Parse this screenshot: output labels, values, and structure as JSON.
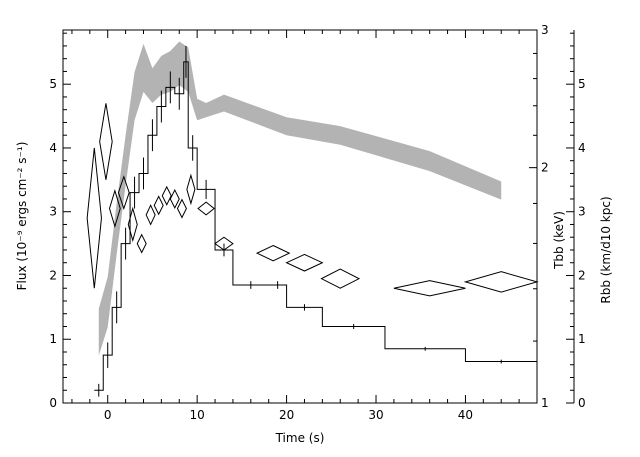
{
  "chart_data": {
    "type": "line",
    "x_axis": {
      "label": "Time (s)",
      "range": [
        -5,
        48
      ],
      "ticks": [
        0,
        10,
        20,
        30,
        40
      ],
      "tick_labels": [
        "0",
        "10",
        "20",
        "30",
        "40"
      ]
    },
    "y_axis_left": {
      "label": "Flux (10⁻⁹ ergs cm⁻² s⁻¹)",
      "range": [
        0,
        5.85
      ],
      "ticks": [
        0,
        1,
        2,
        3,
        4,
        5
      ],
      "tick_labels": [
        "0",
        "1",
        "2",
        "3",
        "4",
        "5"
      ]
    },
    "y_axis_right_temp": {
      "label": "Tbb (keV)",
      "scale": "log",
      "range": [
        1,
        3
      ],
      "ticks": [
        1,
        2,
        3
      ],
      "tick_labels": [
        "1",
        "2",
        "3"
      ]
    },
    "y_axis_right_radius": {
      "label": "Rbb (km/d10 kpc)",
      "range": [
        0,
        5.85
      ],
      "ticks": [
        0,
        1,
        2,
        3,
        4,
        5
      ],
      "tick_labels": [
        "0",
        "1",
        "2",
        "3",
        "4",
        "5"
      ]
    },
    "series": [
      {
        "kind": "step",
        "axis": "flux",
        "bins": [
          {
            "x0": -1.5,
            "x1": -0.5,
            "y": 0.2,
            "err": 0.1
          },
          {
            "x0": -0.5,
            "x1": 0.5,
            "y": 0.75,
            "err": 0.2
          },
          {
            "x0": 0.5,
            "x1": 1.5,
            "y": 1.5,
            "err": 0.25
          },
          {
            "x0": 1.5,
            "x1": 2.5,
            "y": 2.5,
            "err": 0.25
          },
          {
            "x0": 2.5,
            "x1": 3.5,
            "y": 3.3,
            "err": 0.25
          },
          {
            "x0": 3.5,
            "x1": 4.5,
            "y": 3.6,
            "err": 0.25
          },
          {
            "x0": 4.5,
            "x1": 5.5,
            "y": 4.2,
            "err": 0.25
          },
          {
            "x0": 5.5,
            "x1": 6.5,
            "y": 4.65,
            "err": 0.25
          },
          {
            "x0": 6.5,
            "x1": 7.5,
            "y": 4.95,
            "err": 0.25
          },
          {
            "x0": 7.5,
            "x1": 8.5,
            "y": 4.85,
            "err": 0.25
          },
          {
            "x0": 8.5,
            "x1": 9.0,
            "y": 5.35,
            "err": 0.25
          },
          {
            "x0": 9.0,
            "x1": 10.0,
            "y": 4.0,
            "err": 0.2
          },
          {
            "x0": 10.0,
            "x1": 12.0,
            "y": 3.35,
            "err": 0.15
          },
          {
            "x0": 12.0,
            "x1": 14.0,
            "y": 2.4,
            "err": 0.1
          },
          {
            "x0": 14.0,
            "x1": 18.0,
            "y": 1.85,
            "err": 0.06
          },
          {
            "x0": 18.0,
            "x1": 20.0,
            "y": 1.85,
            "err": 0.06
          },
          {
            "x0": 20.0,
            "x1": 24.0,
            "y": 1.5,
            "err": 0.05
          },
          {
            "x0": 24.0,
            "x1": 31.0,
            "y": 1.2,
            "err": 0.04
          },
          {
            "x0": 31.0,
            "x1": 40.0,
            "y": 0.85,
            "err": 0.03
          },
          {
            "x0": 40.0,
            "x1": 48.0,
            "y": 0.65,
            "err": 0.03
          }
        ]
      },
      {
        "kind": "band",
        "axis": "temperature",
        "points": [
          {
            "x": -1.0,
            "lo": 1.15,
            "hi": 1.32
          },
          {
            "x": 0.0,
            "lo": 1.25,
            "hi": 1.45
          },
          {
            "x": 1.0,
            "lo": 1.55,
            "hi": 1.8
          },
          {
            "x": 2.0,
            "lo": 1.9,
            "hi": 2.2
          },
          {
            "x": 3.0,
            "lo": 2.3,
            "hi": 2.65
          },
          {
            "x": 4.0,
            "lo": 2.5,
            "hi": 2.88
          },
          {
            "x": 5.0,
            "lo": 2.42,
            "hi": 2.68
          },
          {
            "x": 6.0,
            "lo": 2.48,
            "hi": 2.78
          },
          {
            "x": 7.0,
            "lo": 2.5,
            "hi": 2.82
          },
          {
            "x": 8.0,
            "lo": 2.55,
            "hi": 2.9
          },
          {
            "x": 9.0,
            "lo": 2.5,
            "hi": 2.85
          },
          {
            "x": 10.0,
            "lo": 2.3,
            "hi": 2.45
          },
          {
            "x": 11.0,
            "lo": 2.32,
            "hi": 2.42
          },
          {
            "x": 13.0,
            "lo": 2.36,
            "hi": 2.48
          },
          {
            "x": 20.0,
            "lo": 2.2,
            "hi": 2.32
          },
          {
            "x": 26.0,
            "lo": 2.14,
            "hi": 2.26
          },
          {
            "x": 36.0,
            "lo": 1.98,
            "hi": 2.1
          },
          {
            "x": 44.0,
            "lo": 1.82,
            "hi": 1.92
          }
        ]
      },
      {
        "kind": "diamonds",
        "axis": "radius",
        "points": [
          {
            "x": -1.5,
            "y": 2.9,
            "dx": 0.8,
            "dy": 1.1
          },
          {
            "x": -0.2,
            "y": 4.1,
            "dx": 0.7,
            "dy": 0.6
          },
          {
            "x": 0.8,
            "y": 3.05,
            "dx": 0.6,
            "dy": 0.28
          },
          {
            "x": 1.8,
            "y": 3.3,
            "dx": 0.6,
            "dy": 0.25
          },
          {
            "x": 2.8,
            "y": 2.8,
            "dx": 0.5,
            "dy": 0.25
          },
          {
            "x": 3.8,
            "y": 2.5,
            "dx": 0.5,
            "dy": 0.14
          },
          {
            "x": 4.8,
            "y": 2.95,
            "dx": 0.5,
            "dy": 0.15
          },
          {
            "x": 5.7,
            "y": 3.1,
            "dx": 0.5,
            "dy": 0.14
          },
          {
            "x": 6.6,
            "y": 3.25,
            "dx": 0.5,
            "dy": 0.14
          },
          {
            "x": 7.5,
            "y": 3.2,
            "dx": 0.5,
            "dy": 0.14
          },
          {
            "x": 8.3,
            "y": 3.05,
            "dx": 0.5,
            "dy": 0.14
          },
          {
            "x": 9.3,
            "y": 3.35,
            "dx": 0.45,
            "dy": 0.22
          },
          {
            "x": 11.0,
            "y": 3.05,
            "dx": 0.9,
            "dy": 0.1
          },
          {
            "x": 13.0,
            "y": 2.5,
            "dx": 1.0,
            "dy": 0.1
          },
          {
            "x": 18.5,
            "y": 2.35,
            "dx": 1.8,
            "dy": 0.12
          },
          {
            "x": 22.0,
            "y": 2.2,
            "dx": 2.0,
            "dy": 0.13
          },
          {
            "x": 26.0,
            "y": 1.95,
            "dx": 2.1,
            "dy": 0.15
          },
          {
            "x": 36.0,
            "y": 1.8,
            "dx": 4.0,
            "dy": 0.12
          },
          {
            "x": 44.0,
            "y": 1.9,
            "dx": 4.0,
            "dy": 0.16
          }
        ]
      }
    ]
  }
}
